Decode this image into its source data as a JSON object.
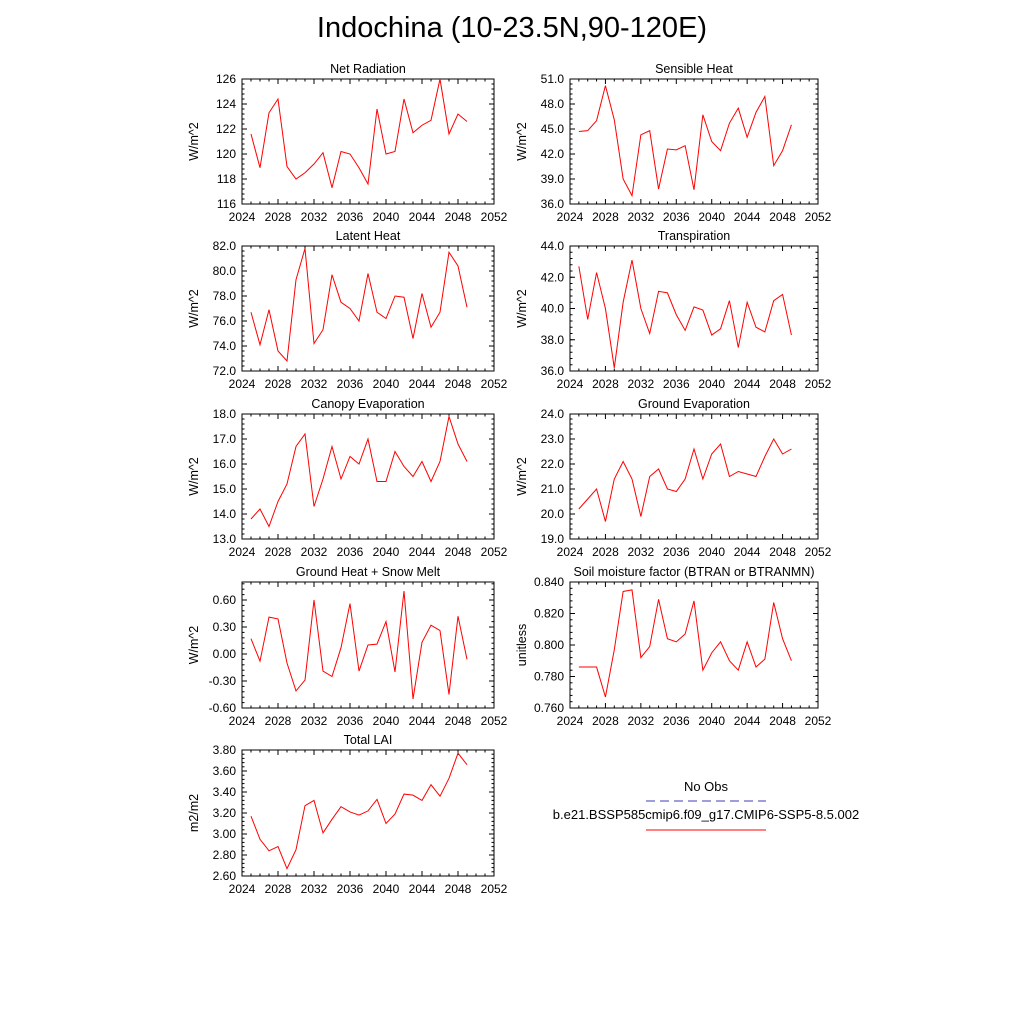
{
  "title": "Indochina (10-23.5N,90-120E)",
  "legend": {
    "entries": [
      {
        "label": "No Obs",
        "color": "#3c3cb4",
        "style": "dashed"
      },
      {
        "label": "b.e21.BSSP585cmip6.f09_g17.CMIP6-SSP5-8.5.002",
        "color": "#ff0000",
        "style": "solid"
      }
    ]
  },
  "chart_data": [
    {
      "type": "line",
      "title": "Net Radiation",
      "ylabel": "W/m^2",
      "xlim": [
        2024,
        2052
      ],
      "xticks": [
        "2024",
        "2028",
        "2032",
        "2036",
        "2040",
        "2044",
        "2048",
        "2052"
      ],
      "ylim": [
        116,
        126
      ],
      "yticks": [
        "116",
        "118",
        "120",
        "122",
        "124",
        "126"
      ],
      "x": [
        2025,
        2026,
        2027,
        2028,
        2029,
        2030,
        2031,
        2032,
        2033,
        2034,
        2035,
        2036,
        2037,
        2038,
        2039,
        2040,
        2041,
        2042,
        2043,
        2044,
        2045,
        2046,
        2047,
        2048,
        2049
      ],
      "series": [
        {
          "color": "#ff0000",
          "values": [
            121.6,
            118.9,
            123.3,
            124.4,
            119.0,
            118.0,
            118.5,
            119.2,
            120.1,
            117.3,
            120.2,
            120.0,
            118.9,
            117.6,
            123.6,
            120.0,
            120.2,
            124.4,
            121.7,
            122.3,
            122.7,
            126.0,
            121.6,
            123.2,
            122.6
          ]
        }
      ]
    },
    {
      "type": "line",
      "title": "Sensible Heat",
      "ylabel": "W/m^2",
      "xlim": [
        2024,
        2052
      ],
      "xticks": [
        "2024",
        "2028",
        "2032",
        "2036",
        "2040",
        "2044",
        "2048",
        "2052"
      ],
      "ylim": [
        36.0,
        51.0
      ],
      "yticks": [
        "36.0",
        "39.0",
        "42.0",
        "45.0",
        "48.0",
        "51.0"
      ],
      "x": [
        2025,
        2026,
        2027,
        2028,
        2029,
        2030,
        2031,
        2032,
        2033,
        2034,
        2035,
        2036,
        2037,
        2038,
        2039,
        2040,
        2041,
        2042,
        2043,
        2044,
        2045,
        2046,
        2047,
        2048,
        2049
      ],
      "series": [
        {
          "color": "#ff0000",
          "values": [
            44.7,
            44.8,
            46.0,
            50.2,
            46.1,
            39.0,
            37.0,
            44.3,
            44.8,
            37.8,
            42.6,
            42.5,
            43.0,
            37.7,
            46.7,
            43.5,
            42.4,
            45.7,
            47.5,
            44.0,
            47.0,
            48.9,
            40.6,
            42.4,
            45.5
          ]
        }
      ]
    },
    {
      "type": "line",
      "title": "Latent Heat",
      "ylabel": "W/m^2",
      "xlim": [
        2024,
        2052
      ],
      "xticks": [
        "2024",
        "2028",
        "2032",
        "2036",
        "2040",
        "2044",
        "2048",
        "2052"
      ],
      "ylim": [
        72.0,
        82.0
      ],
      "yticks": [
        "72.0",
        "74.0",
        "76.0",
        "78.0",
        "80.0",
        "82.0"
      ],
      "x": [
        2025,
        2026,
        2027,
        2028,
        2029,
        2030,
        2031,
        2032,
        2033,
        2034,
        2035,
        2036,
        2037,
        2038,
        2039,
        2040,
        2041,
        2042,
        2043,
        2044,
        2045,
        2046,
        2047,
        2048,
        2049
      ],
      "series": [
        {
          "color": "#ff0000",
          "values": [
            76.7,
            74.1,
            76.9,
            73.6,
            72.8,
            79.3,
            81.8,
            74.2,
            75.3,
            79.7,
            77.5,
            77.0,
            76.0,
            79.8,
            76.7,
            76.2,
            78.0,
            77.9,
            74.6,
            78.2,
            75.5,
            76.7,
            81.5,
            80.4,
            77.1
          ]
        }
      ]
    },
    {
      "type": "line",
      "title": "Transpiration",
      "ylabel": "W/m^2",
      "xlim": [
        2024,
        2052
      ],
      "xticks": [
        "2024",
        "2028",
        "2032",
        "2036",
        "2040",
        "2044",
        "2048",
        "2052"
      ],
      "ylim": [
        36.0,
        44.0
      ],
      "yticks": [
        "36.0",
        "38.0",
        "40.0",
        "42.0",
        "44.0"
      ],
      "x": [
        2025,
        2026,
        2027,
        2028,
        2029,
        2030,
        2031,
        2032,
        2033,
        2034,
        2035,
        2036,
        2037,
        2038,
        2039,
        2040,
        2041,
        2042,
        2043,
        2044,
        2045,
        2046,
        2047,
        2048,
        2049
      ],
      "series": [
        {
          "color": "#ff0000",
          "values": [
            42.7,
            39.3,
            42.3,
            40.0,
            36.2,
            40.4,
            43.1,
            40.0,
            38.4,
            41.1,
            41.0,
            39.6,
            38.6,
            40.1,
            39.9,
            38.3,
            38.7,
            40.5,
            37.5,
            40.4,
            38.8,
            38.5,
            40.5,
            40.9,
            38.3
          ]
        }
      ]
    },
    {
      "type": "line",
      "title": "Canopy Evaporation",
      "ylabel": "W/m^2",
      "xlim": [
        2024,
        2052
      ],
      "xticks": [
        "2024",
        "2028",
        "2032",
        "2036",
        "2040",
        "2044",
        "2048",
        "2052"
      ],
      "ylim": [
        13.0,
        18.0
      ],
      "yticks": [
        "13.0",
        "14.0",
        "15.0",
        "16.0",
        "17.0",
        "18.0"
      ],
      "x": [
        2025,
        2026,
        2027,
        2028,
        2029,
        2030,
        2031,
        2032,
        2033,
        2034,
        2035,
        2036,
        2037,
        2038,
        2039,
        2040,
        2041,
        2042,
        2043,
        2044,
        2045,
        2046,
        2047,
        2048,
        2049
      ],
      "series": [
        {
          "color": "#ff0000",
          "values": [
            13.8,
            14.2,
            13.5,
            14.5,
            15.2,
            16.7,
            17.2,
            14.3,
            15.4,
            16.7,
            15.4,
            16.3,
            16.0,
            17.0,
            15.3,
            15.3,
            16.5,
            15.9,
            15.5,
            16.1,
            15.3,
            16.1,
            17.9,
            16.8,
            16.1
          ]
        }
      ]
    },
    {
      "type": "line",
      "title": "Ground Evaporation",
      "ylabel": "W/m^2",
      "xlim": [
        2024,
        2052
      ],
      "xticks": [
        "2024",
        "2028",
        "2032",
        "2036",
        "2040",
        "2044",
        "2048",
        "2052"
      ],
      "ylim": [
        19.0,
        24.0
      ],
      "yticks": [
        "19.0",
        "20.0",
        "21.0",
        "22.0",
        "23.0",
        "24.0"
      ],
      "x": [
        2025,
        2026,
        2027,
        2028,
        2029,
        2030,
        2031,
        2032,
        2033,
        2034,
        2035,
        2036,
        2037,
        2038,
        2039,
        2040,
        2041,
        2042,
        2043,
        2044,
        2045,
        2046,
        2047,
        2048,
        2049
      ],
      "series": [
        {
          "color": "#ff0000",
          "values": [
            20.2,
            20.6,
            21.0,
            19.7,
            21.4,
            22.1,
            21.4,
            19.9,
            21.5,
            21.8,
            21.0,
            20.9,
            21.4,
            22.6,
            21.4,
            22.4,
            22.8,
            21.5,
            21.7,
            21.6,
            21.5,
            22.3,
            23.0,
            22.4,
            22.6
          ]
        }
      ]
    },
    {
      "type": "line",
      "title": "Ground Heat + Snow Melt",
      "ylabel": "W/m^2",
      "xlim": [
        2024,
        2052
      ],
      "xticks": [
        "2024",
        "2028",
        "2032",
        "2036",
        "2040",
        "2044",
        "2048",
        "2052"
      ],
      "ylim": [
        -0.6,
        0.8
      ],
      "yticks": [
        "-0.60",
        "-0.30",
        "0.00",
        "0.30",
        "0.60"
      ],
      "x": [
        2025,
        2026,
        2027,
        2028,
        2029,
        2030,
        2031,
        2032,
        2033,
        2034,
        2035,
        2036,
        2037,
        2038,
        2039,
        2040,
        2041,
        2042,
        2043,
        2044,
        2045,
        2046,
        2047,
        2048,
        2049
      ],
      "series": [
        {
          "color": "#ff0000",
          "values": [
            0.17,
            -0.08,
            0.41,
            0.39,
            -0.1,
            -0.41,
            -0.29,
            0.6,
            -0.19,
            -0.25,
            0.07,
            0.56,
            -0.19,
            0.1,
            0.11,
            0.36,
            -0.2,
            0.7,
            -0.5,
            0.13,
            0.32,
            0.26,
            -0.45,
            0.42,
            -0.06
          ]
        }
      ]
    },
    {
      "type": "line",
      "title": "Soil moisture factor (BTRAN or BTRANMN)",
      "ylabel": "unitless",
      "xlim": [
        2024,
        2052
      ],
      "xticks": [
        "2024",
        "2028",
        "2032",
        "2036",
        "2040",
        "2044",
        "2048",
        "2052"
      ],
      "ylim": [
        0.76,
        0.84
      ],
      "yticks": [
        "0.760",
        "0.780",
        "0.800",
        "0.820",
        "0.840"
      ],
      "x": [
        2025,
        2026,
        2027,
        2028,
        2029,
        2030,
        2031,
        2032,
        2033,
        2034,
        2035,
        2036,
        2037,
        2038,
        2039,
        2040,
        2041,
        2042,
        2043,
        2044,
        2045,
        2046,
        2047,
        2048,
        2049
      ],
      "series": [
        {
          "color": "#ff0000",
          "values": [
            0.786,
            0.786,
            0.786,
            0.767,
            0.797,
            0.834,
            0.835,
            0.792,
            0.799,
            0.829,
            0.804,
            0.802,
            0.807,
            0.828,
            0.784,
            0.795,
            0.802,
            0.79,
            0.784,
            0.802,
            0.786,
            0.791,
            0.827,
            0.804,
            0.79
          ]
        }
      ]
    },
    {
      "type": "line",
      "title": "Total LAI",
      "ylabel": "m2/m2",
      "xlim": [
        2024,
        2052
      ],
      "xticks": [
        "2024",
        "2028",
        "2032",
        "2036",
        "2040",
        "2044",
        "2048",
        "2052"
      ],
      "ylim": [
        2.6,
        3.8
      ],
      "yticks": [
        "2.60",
        "2.80",
        "3.00",
        "3.20",
        "3.40",
        "3.60",
        "3.80"
      ],
      "x": [
        2025,
        2026,
        2027,
        2028,
        2029,
        2030,
        2031,
        2032,
        2033,
        2034,
        2035,
        2036,
        2037,
        2038,
        2039,
        2040,
        2041,
        2042,
        2043,
        2044,
        2045,
        2046,
        2047,
        2048,
        2049
      ],
      "series": [
        {
          "color": "#ff0000",
          "values": [
            3.17,
            2.95,
            2.84,
            2.88,
            2.67,
            2.85,
            3.27,
            3.32,
            3.01,
            3.14,
            3.26,
            3.21,
            3.18,
            3.22,
            3.33,
            3.1,
            3.19,
            3.38,
            3.37,
            3.32,
            3.47,
            3.36,
            3.53,
            3.77,
            3.66
          ]
        }
      ]
    }
  ]
}
